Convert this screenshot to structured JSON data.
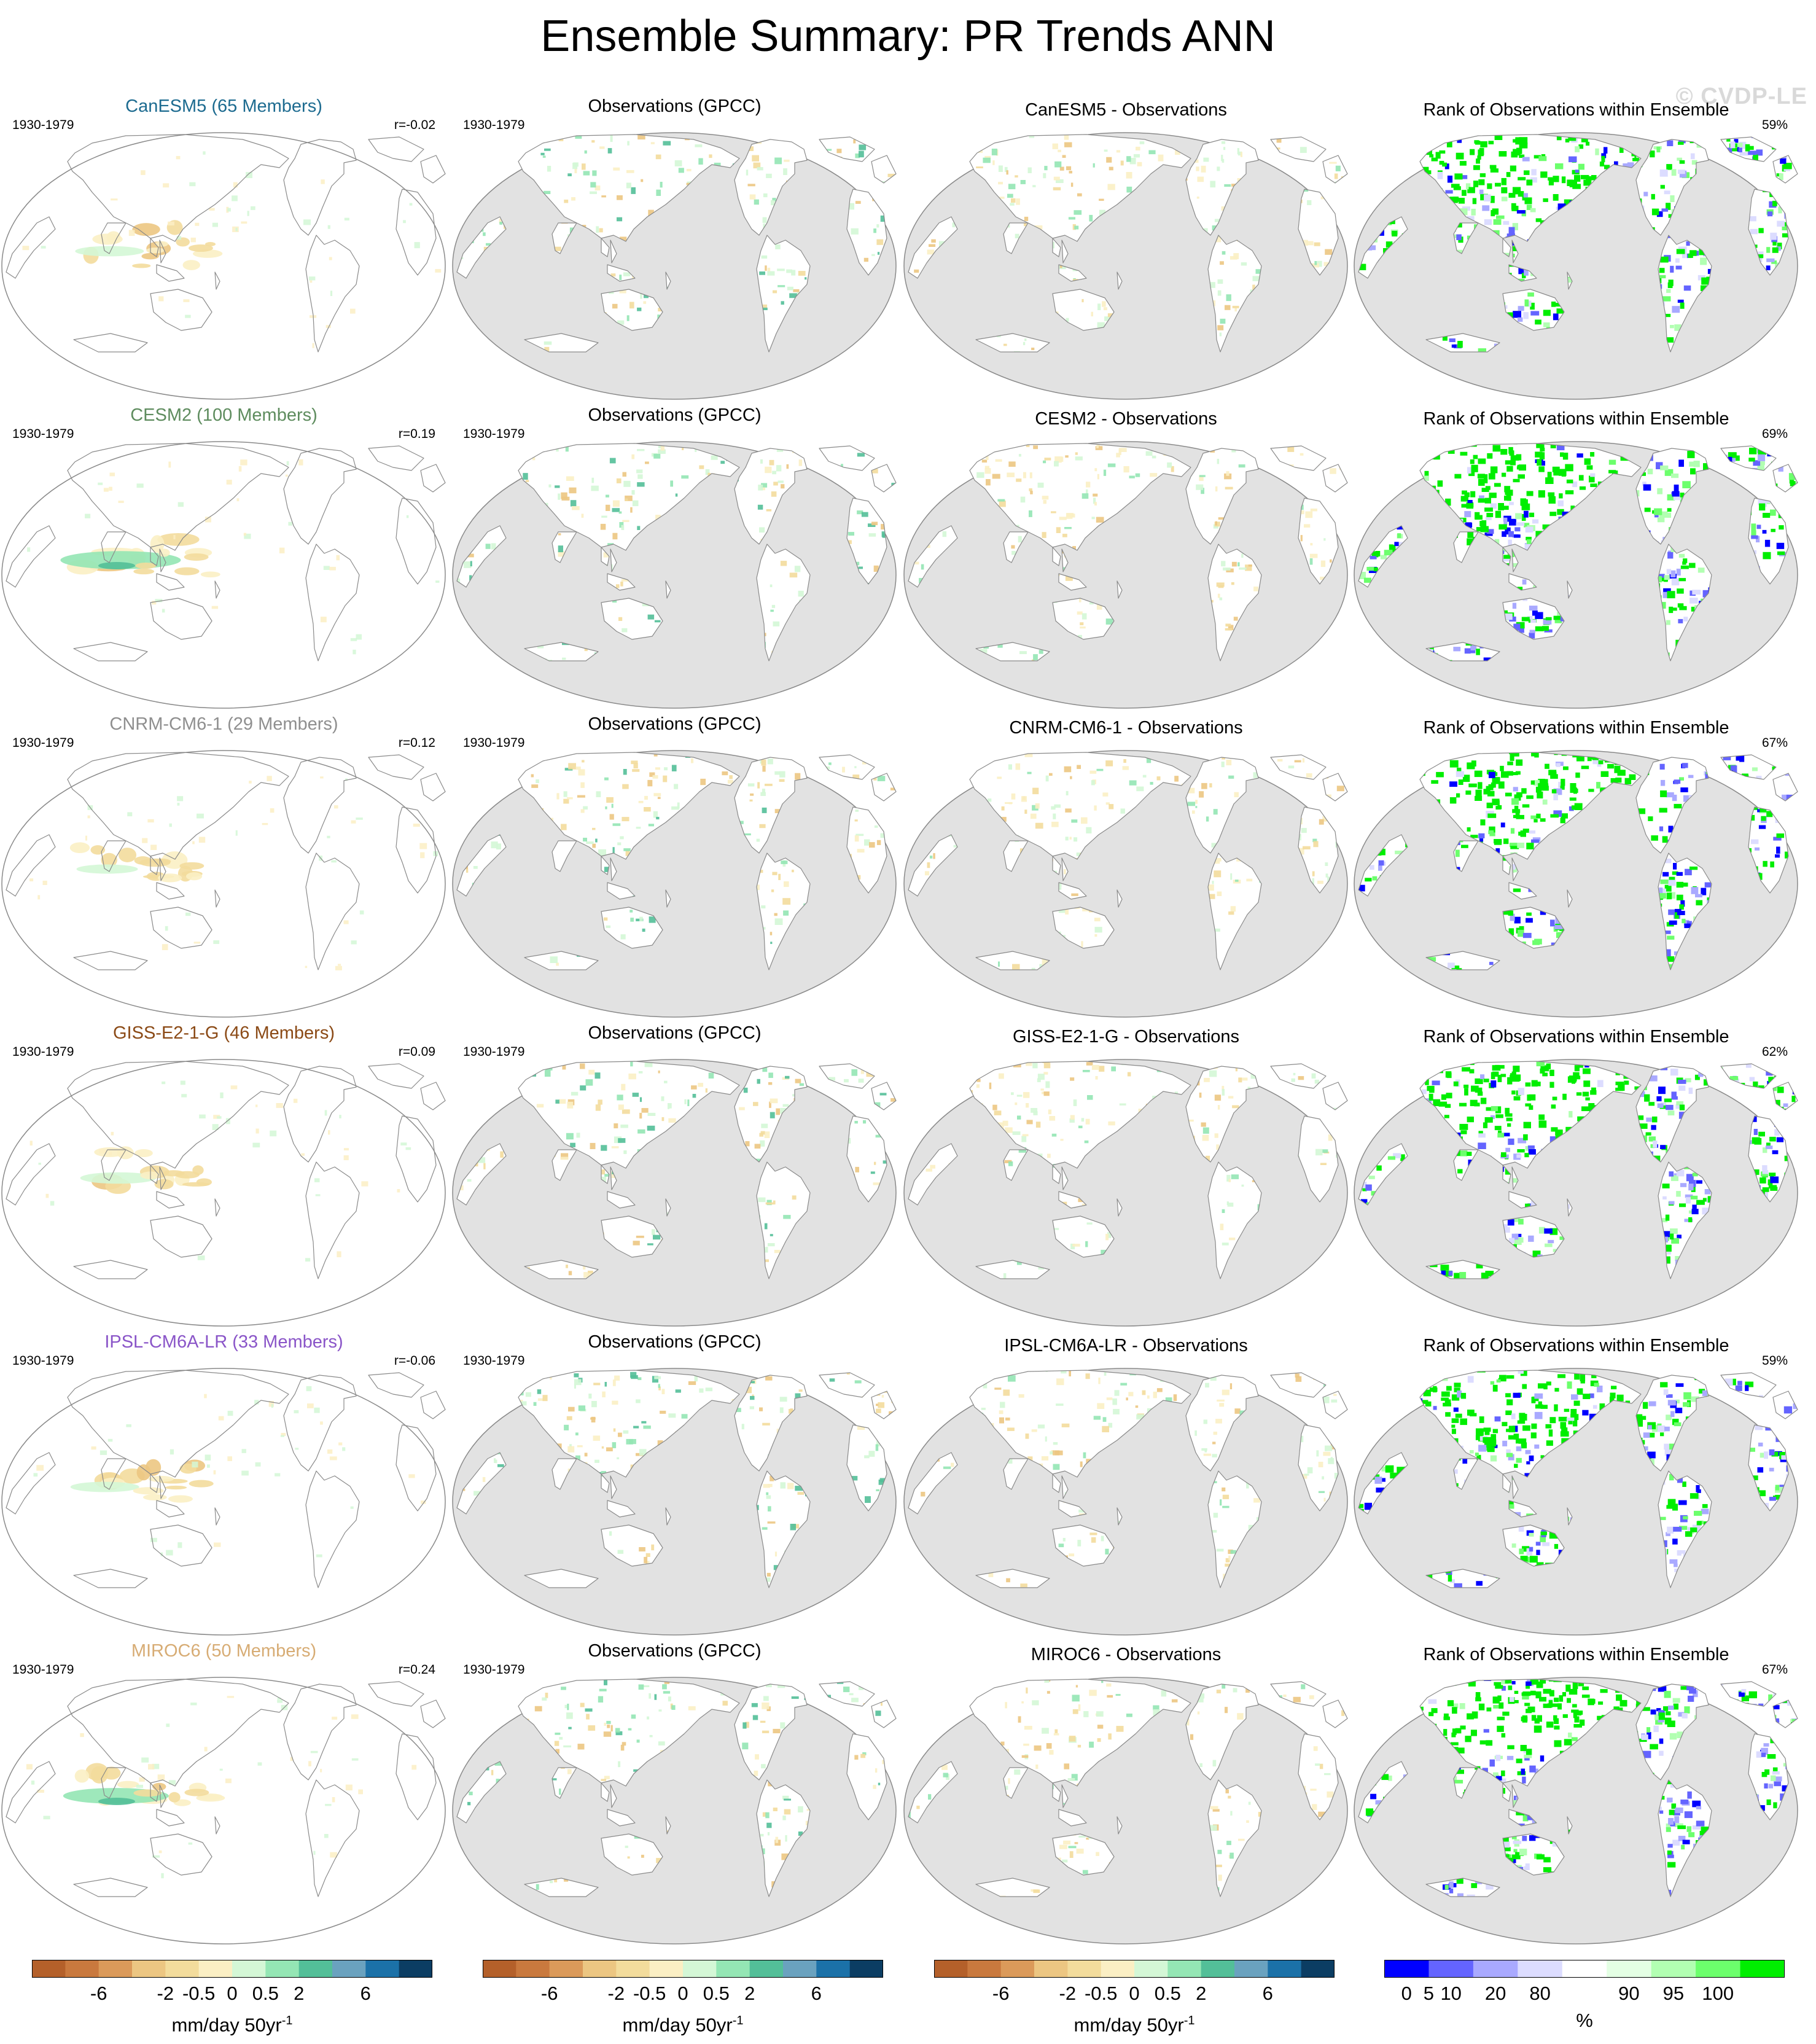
{
  "title": "Ensemble Summary: PR Trends ANN",
  "watermark": "© CVDP-LE",
  "colors": {
    "ocean_gray": "#e2e2e2",
    "coast": "#8a8a8a",
    "dry": [
      "#b4602a",
      "#c9793e",
      "#db9a5a",
      "#ecc682",
      "#f3dc9c",
      "#fbefc4"
    ],
    "wet": [
      "#d4f7d6",
      "#94e6b4",
      "#53bf98",
      "#6aa2bf",
      "#1b71a8",
      "#0b3d63"
    ],
    "rank": [
      "#0000ff",
      "#6464ff",
      "#a9a9ff",
      "#dcdcff",
      "#ffffff",
      "#e4ffe4",
      "#b2ffb2",
      "#6cff6c",
      "#00ee00"
    ]
  },
  "rows": [
    {
      "model": {
        "label": "CanESM5 (65 Members)",
        "color": "#1d6b90",
        "period": "1930-1979",
        "r": "r=-0.02"
      },
      "obs": {
        "label": "Observations (GPCC)",
        "period": "1930-1979"
      },
      "diff": {
        "label": "CanESM5 - Observations"
      },
      "rank": {
        "label": "Rank of Observations within Ensemble",
        "pct": "59%"
      }
    },
    {
      "model": {
        "label": "CESM2 (100 Members)",
        "color": "#5e8c5e",
        "period": "1930-1979",
        "r": "r=0.19"
      },
      "obs": {
        "label": "Observations (GPCC)",
        "period": "1930-1979"
      },
      "diff": {
        "label": "CESM2 - Observations"
      },
      "rank": {
        "label": "Rank of Observations within Ensemble",
        "pct": "69%"
      }
    },
    {
      "model": {
        "label": "CNRM-CM6-1 (29 Members)",
        "color": "#8f8f8f",
        "period": "1930-1979",
        "r": "r=0.12"
      },
      "obs": {
        "label": "Observations (GPCC)",
        "period": "1930-1979"
      },
      "diff": {
        "label": "CNRM-CM6-1 - Observations"
      },
      "rank": {
        "label": "Rank of Observations within Ensemble",
        "pct": "67%"
      }
    },
    {
      "model": {
        "label": "GISS-E2-1-G (46 Members)",
        "color": "#8b4a16",
        "period": "1930-1979",
        "r": "r=0.09"
      },
      "obs": {
        "label": "Observations (GPCC)",
        "period": "1930-1979"
      },
      "diff": {
        "label": "GISS-E2-1-G - Observations"
      },
      "rank": {
        "label": "Rank of Observations within Ensemble",
        "pct": "62%"
      }
    },
    {
      "model": {
        "label": "IPSL-CM6A-LR (33 Members)",
        "color": "#8a55c8",
        "period": "1930-1979",
        "r": "r=-0.06"
      },
      "obs": {
        "label": "Observations (GPCC)",
        "period": "1930-1979"
      },
      "diff": {
        "label": "IPSL-CM6A-LR - Observations"
      },
      "rank": {
        "label": "Rank of Observations within Ensemble",
        "pct": "59%"
      }
    },
    {
      "model": {
        "label": "MIROC6 (50 Members)",
        "color": "#d7ac74",
        "period": "1930-1979",
        "r": "r=0.24"
      },
      "obs": {
        "label": "Observations (GPCC)",
        "period": "1930-1979"
      },
      "diff": {
        "label": "MIROC6 - Observations"
      },
      "rank": {
        "label": "Rank of Observations within Ensemble",
        "pct": "67%"
      }
    }
  ],
  "colorbars": [
    {
      "ticks": [
        "-6",
        "-2",
        "-0.5",
        "0",
        "0.5",
        "2",
        "6"
      ],
      "units": "mm/day 50yr",
      "units_sup": "-1"
    },
    {
      "ticks": [
        "-6",
        "-2",
        "-0.5",
        "0",
        "0.5",
        "2",
        "6"
      ],
      "units": "mm/day 50yr",
      "units_sup": "-1"
    },
    {
      "ticks": [
        "-6",
        "-2",
        "-0.5",
        "0",
        "0.5",
        "2",
        "6"
      ],
      "units": "mm/day 50yr",
      "units_sup": "-1"
    },
    {
      "ticks": [
        "0",
        "5",
        "10",
        "20",
        "80",
        "90",
        "95",
        "100"
      ],
      "units": "%",
      "units_sup": ""
    }
  ],
  "chart_data": {
    "type": "heatmap",
    "title": "Ensemble Summary: PR Trends ANN",
    "variable": "PR trends, annual (ANN)",
    "period": "1930-1979",
    "projection": "global map, Pacific-centered",
    "columns": [
      "model ensemble-mean trend",
      "Observations (GPCC)",
      "model - Observations",
      "Rank of Observations within Ensemble"
    ],
    "models": [
      {
        "name": "CanESM5",
        "members": 65,
        "r": -0.02,
        "rank_pct": 59
      },
      {
        "name": "CESM2",
        "members": 100,
        "r": 0.19,
        "rank_pct": 69
      },
      {
        "name": "CNRM-CM6-1",
        "members": 29,
        "r": 0.12,
        "rank_pct": 67
      },
      {
        "name": "GISS-E2-1-G",
        "members": 46,
        "r": 0.09,
        "rank_pct": 62
      },
      {
        "name": "IPSL-CM6A-LR",
        "members": 33,
        "r": -0.06,
        "rank_pct": 59
      },
      {
        "name": "MIROC6",
        "members": 50,
        "r": 0.24,
        "rank_pct": 67
      }
    ],
    "trend_colorbar": {
      "units": "mm/day 50yr-1",
      "ticks": [
        -6,
        -2,
        -0.5,
        0,
        0.5,
        2,
        6
      ]
    },
    "rank_colorbar": {
      "units": "%",
      "ticks": [
        0,
        5,
        10,
        20,
        80,
        90,
        95,
        100
      ]
    }
  }
}
